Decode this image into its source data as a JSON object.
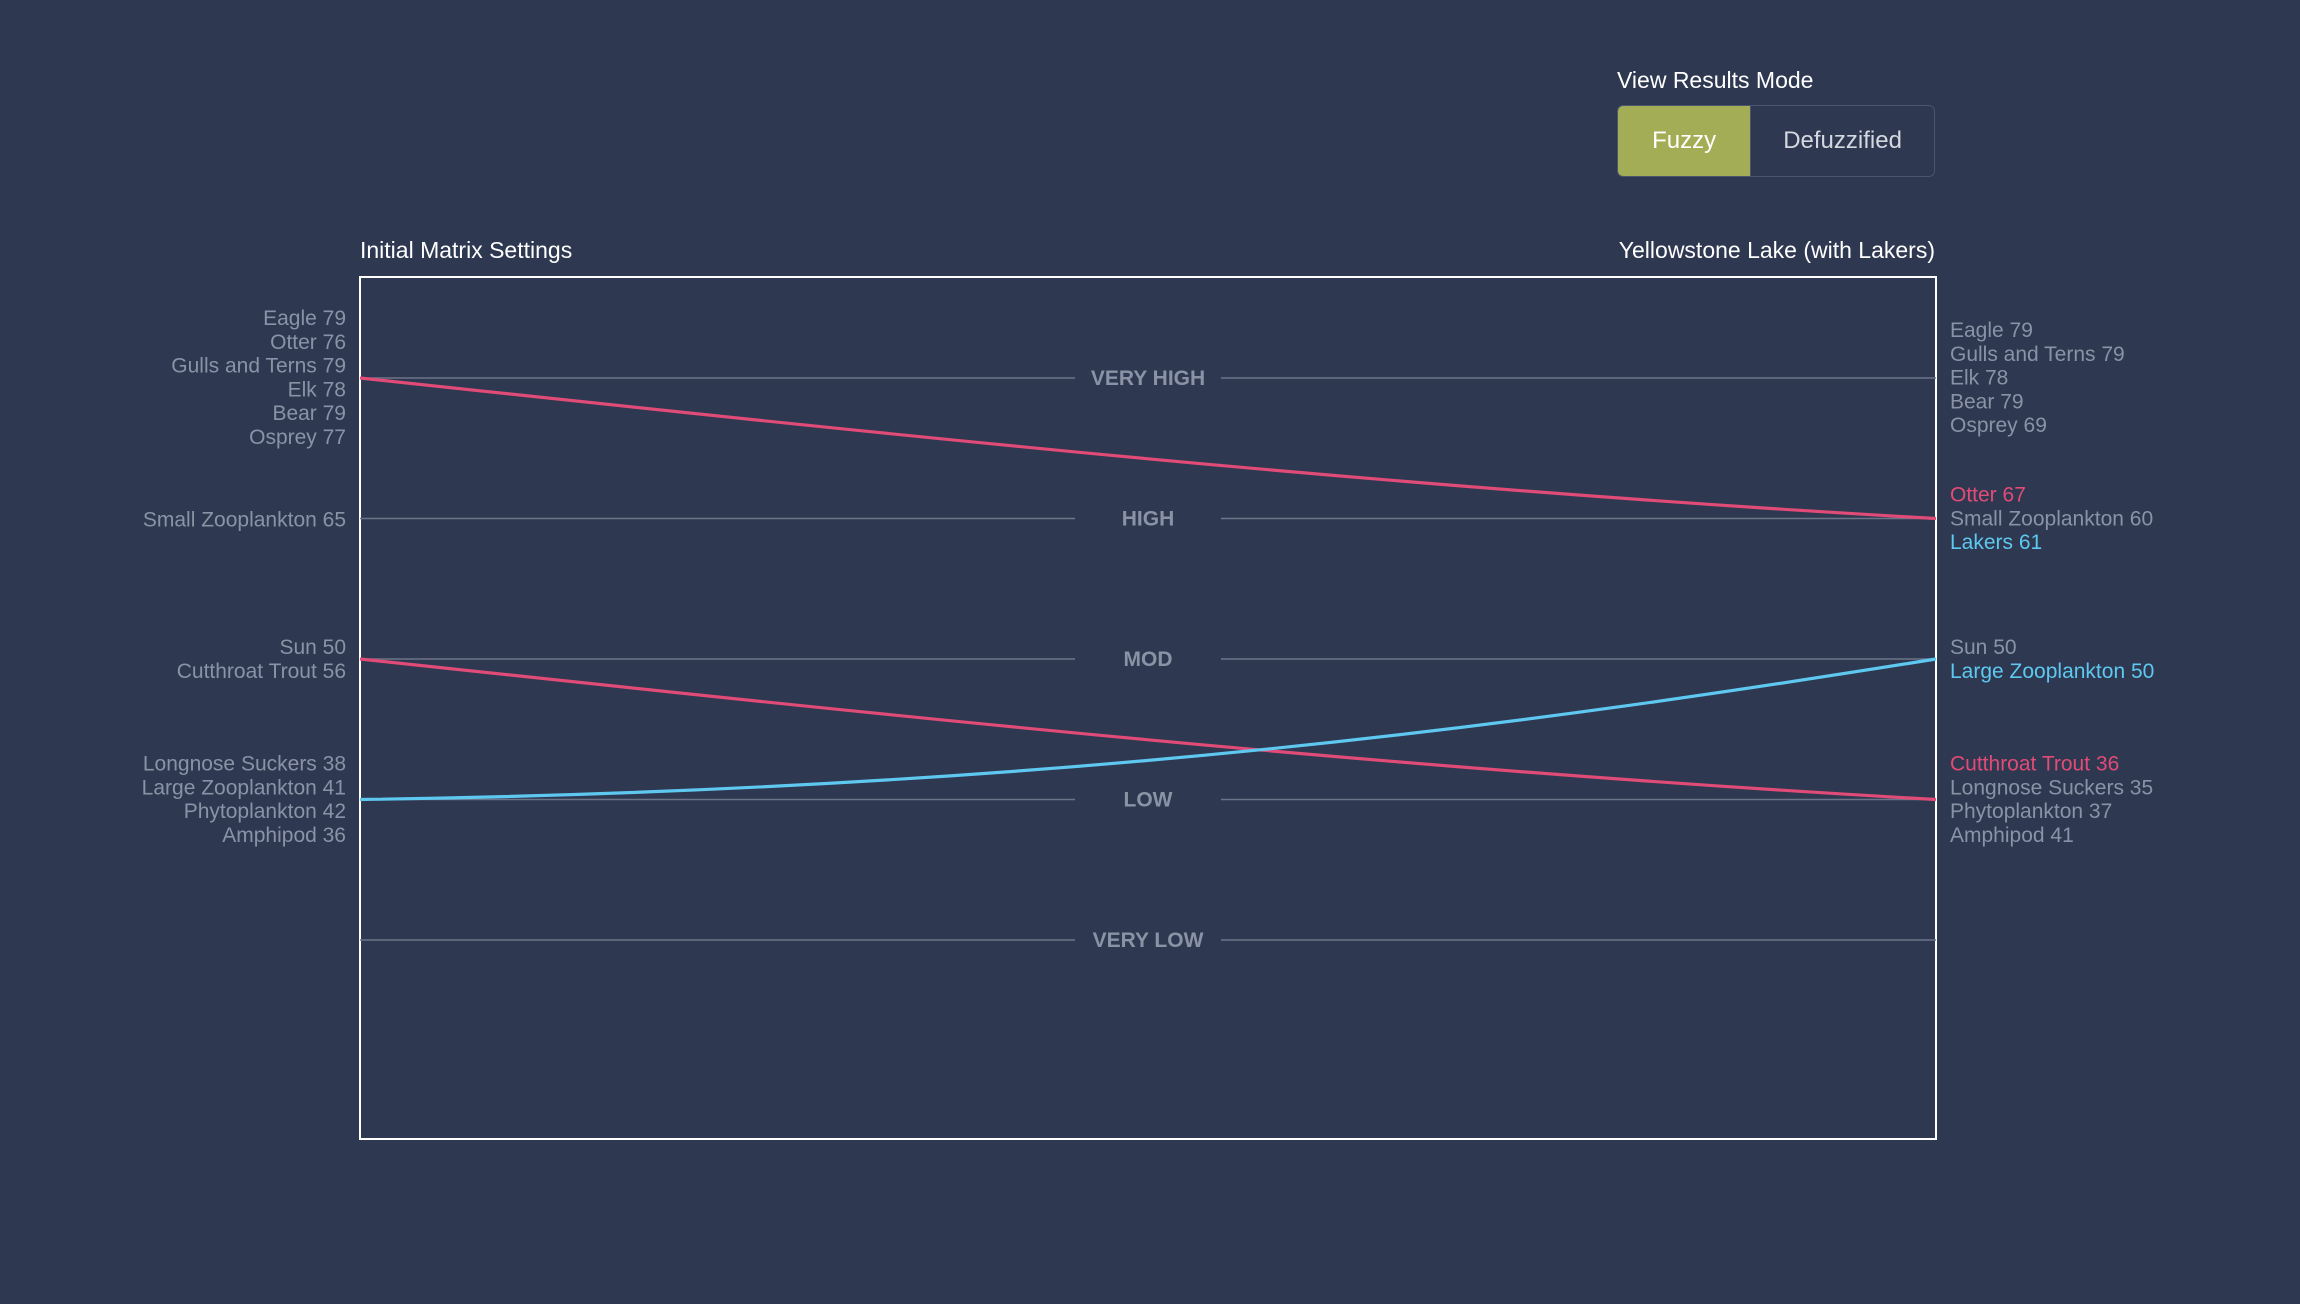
{
  "toolbar": {
    "mode_label": "View Results Mode",
    "modes": [
      {
        "label": "Fuzzy",
        "active": true
      },
      {
        "label": "Defuzzified",
        "active": false
      }
    ]
  },
  "colors": {
    "background": "#2e3850",
    "accent": "#a3ad55",
    "increase": "#5ec8f0",
    "decrease": "#e04b77",
    "muted_text": "#8a93a6"
  },
  "chart_data": {
    "type": "line",
    "left_title": "Initial Matrix Settings",
    "right_title": "Yellowstone Lake (with Lakers)",
    "levels": [
      "VERY HIGH",
      "HIGH",
      "MOD",
      "LOW",
      "VERY LOW"
    ],
    "left_groups": [
      {
        "level": "VERY HIGH",
        "items": [
          {
            "label": "Eagle 79"
          },
          {
            "label": "Otter 76"
          },
          {
            "label": "Gulls and Terns 79"
          },
          {
            "label": "Elk 78"
          },
          {
            "label": "Bear 79"
          },
          {
            "label": "Osprey 77"
          }
        ]
      },
      {
        "level": "HIGH",
        "items": [
          {
            "label": "Small Zooplankton 65"
          }
        ]
      },
      {
        "level": "MOD",
        "items": [
          {
            "label": "Sun 50"
          },
          {
            "label": "Cutthroat Trout 56"
          }
        ]
      },
      {
        "level": "LOW",
        "items": [
          {
            "label": "Longnose Suckers 38"
          },
          {
            "label": "Large Zooplankton 41"
          },
          {
            "label": "Phytoplankton 42"
          },
          {
            "label": "Amphipod 36"
          }
        ]
      }
    ],
    "right_groups": [
      {
        "level": "VERY HIGH",
        "items": [
          {
            "label": "Eagle 79"
          },
          {
            "label": "Gulls and Terns 79"
          },
          {
            "label": "Elk 78"
          },
          {
            "label": "Bear 79"
          },
          {
            "label": "Osprey 69"
          }
        ]
      },
      {
        "level": "HIGH",
        "items": [
          {
            "label": "Otter 67",
            "highlight": "decrease"
          },
          {
            "label": "Small Zooplankton 60"
          },
          {
            "label": "Lakers 61",
            "highlight": "increase"
          }
        ]
      },
      {
        "level": "MOD",
        "items": [
          {
            "label": "Sun 50"
          },
          {
            "label": "Large Zooplankton 50",
            "highlight": "increase"
          }
        ]
      },
      {
        "level": "LOW",
        "items": [
          {
            "label": "Cutthroat Trout 36",
            "highlight": "decrease"
          },
          {
            "label": "Longnose Suckers 35"
          },
          {
            "label": "Phytoplankton 37"
          },
          {
            "label": "Amphipod 41"
          }
        ]
      }
    ],
    "series": [
      {
        "from": "VERY HIGH",
        "to": "HIGH",
        "direction": "decrease"
      },
      {
        "from": "MOD",
        "to": "LOW",
        "direction": "decrease"
      },
      {
        "from": "LOW",
        "to": "MOD",
        "direction": "increase"
      }
    ]
  }
}
